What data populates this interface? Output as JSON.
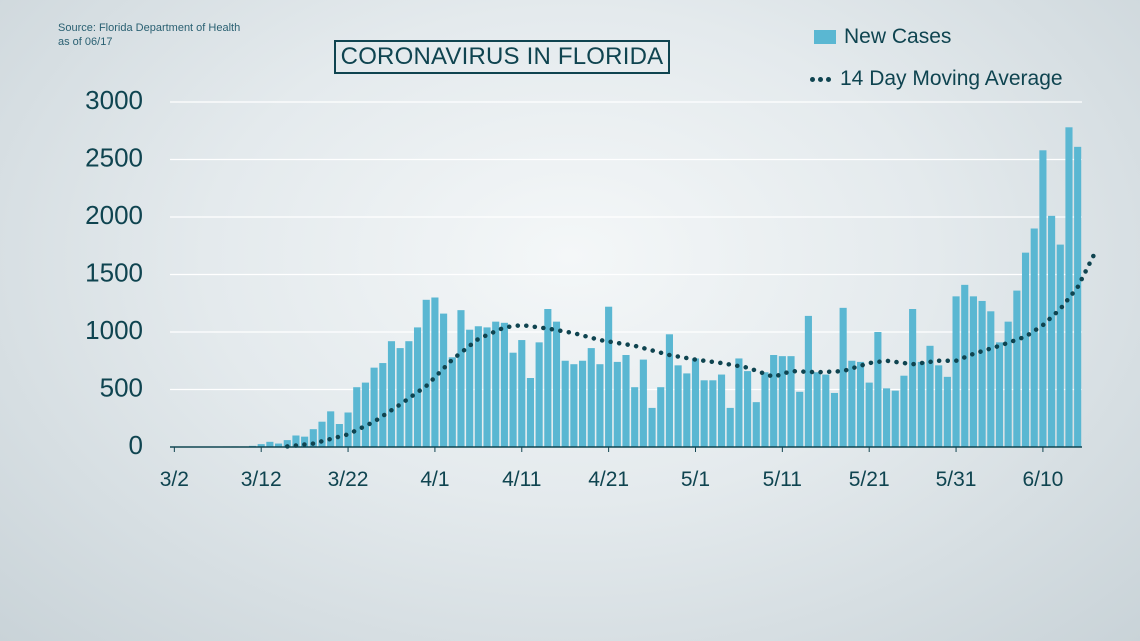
{
  "source": {
    "line1": "Source: Florida Department of Health",
    "line2": "as of 06/17"
  },
  "colors": {
    "bars": "#5ab7d2",
    "average": "#0f4450",
    "text": "#0f4450",
    "grid": "#ffffff"
  },
  "chart_data": {
    "type": "bar",
    "title": "CORONAVIRUS IN FLORIDA",
    "ylim": [
      0,
      3000
    ],
    "yticks": [
      0,
      500,
      1000,
      1500,
      2000,
      2500,
      3000
    ],
    "grid": true,
    "legend_position": "top-right",
    "x_start_date": "3/2",
    "x_tick_labels": [
      {
        "index": 0,
        "label": "3/2"
      },
      {
        "index": 10,
        "label": "3/12"
      },
      {
        "index": 20,
        "label": "3/22"
      },
      {
        "index": 30,
        "label": "4/1"
      },
      {
        "index": 40,
        "label": "4/11"
      },
      {
        "index": 50,
        "label": "4/21"
      },
      {
        "index": 60,
        "label": "5/1"
      },
      {
        "index": 70,
        "label": "5/11"
      },
      {
        "index": 80,
        "label": "5/21"
      },
      {
        "index": 90,
        "label": "5/31"
      },
      {
        "index": 100,
        "label": "6/10"
      }
    ],
    "series": [
      {
        "name": "New Cases",
        "kind": "bar",
        "values": [
          0,
          0,
          2,
          0,
          3,
          0,
          5,
          5,
          5,
          10,
          25,
          45,
          30,
          60,
          100,
          90,
          155,
          220,
          310,
          200,
          300,
          520,
          560,
          690,
          730,
          920,
          860,
          920,
          1040,
          1280,
          1300,
          1160,
          780,
          1190,
          1020,
          1050,
          1040,
          1090,
          1080,
          820,
          930,
          600,
          910,
          1200,
          1090,
          750,
          720,
          750,
          860,
          720,
          1220,
          740,
          800,
          520,
          760,
          340,
          520,
          980,
          710,
          640,
          770,
          580,
          580,
          630,
          340,
          770,
          660,
          390,
          650,
          800,
          790,
          790,
          480,
          1140,
          650,
          630,
          470,
          1210,
          750,
          740,
          560,
          1000,
          510,
          490,
          620,
          1200,
          740,
          880,
          710,
          610,
          1310,
          1410,
          1310,
          1270,
          1180,
          910,
          1090,
          1360,
          1690,
          1900,
          2580,
          2010,
          1760,
          2780,
          2610
        ]
      },
      {
        "name": "14 Day Moving Average",
        "kind": "dotted-line",
        "points": [
          [
            13,
            5
          ],
          [
            16,
            30
          ],
          [
            20,
            110
          ],
          [
            23,
            220
          ],
          [
            26,
            370
          ],
          [
            29,
            530
          ],
          [
            32,
            760
          ],
          [
            35,
            940
          ],
          [
            38,
            1040
          ],
          [
            40,
            1060
          ],
          [
            43,
            1030
          ],
          [
            46,
            990
          ],
          [
            49,
            930
          ],
          [
            53,
            880
          ],
          [
            57,
            800
          ],
          [
            60,
            760
          ],
          [
            63,
            730
          ],
          [
            66,
            690
          ],
          [
            69,
            610
          ],
          [
            71,
            660
          ],
          [
            74,
            650
          ],
          [
            77,
            660
          ],
          [
            80,
            730
          ],
          [
            82,
            750
          ],
          [
            85,
            720
          ],
          [
            88,
            750
          ],
          [
            90,
            750
          ],
          [
            92,
            810
          ],
          [
            95,
            880
          ],
          [
            98,
            960
          ],
          [
            100,
            1060
          ],
          [
            102,
            1200
          ],
          [
            104,
            1390
          ],
          [
            106,
            1690
          ]
        ]
      }
    ]
  }
}
